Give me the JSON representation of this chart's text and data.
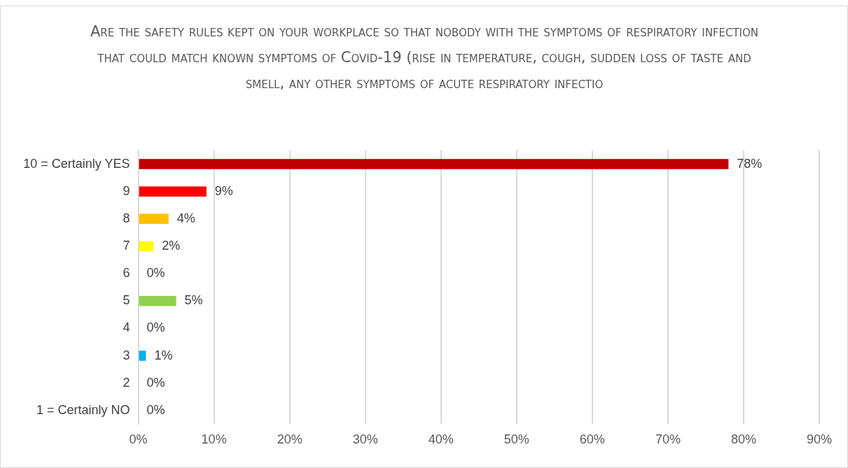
{
  "chart_data": {
    "type": "bar",
    "orientation": "horizontal",
    "title": "Are the safety rules kept on your workplace so that nobody with the symptoms of respiratory infection that could match known symptoms of Covid-19 (rise in temperature, cough, sudden loss of taste and smell, any other symptoms of acute respiratory infectio",
    "categories": [
      "10 = Certainly YES",
      "9",
      "8",
      "7",
      "6",
      "5",
      "4",
      "3",
      "2",
      "1 = Certainly NO"
    ],
    "values": [
      78,
      9,
      4,
      2,
      0,
      5,
      0,
      1,
      0,
      0
    ],
    "value_labels": [
      "78%",
      "9%",
      "4%",
      "2%",
      "0%",
      "5%",
      "0%",
      "1%",
      "0%",
      "0%"
    ],
    "colors": [
      "#c00000",
      "#ff0000",
      "#ffc000",
      "#ffff00",
      "#a5a5a5",
      "#92d050",
      "#a5a5a5",
      "#00b0f0",
      "#a5a5a5",
      "#a5a5a5"
    ],
    "xlim": [
      0,
      90
    ],
    "xticks": [
      {
        "value": 0,
        "label": "0%"
      },
      {
        "value": 10,
        "label": "10%"
      },
      {
        "value": 20,
        "label": "20%"
      },
      {
        "value": 30,
        "label": "30%"
      },
      {
        "value": 40,
        "label": "40%"
      },
      {
        "value": 50,
        "label": "50%"
      },
      {
        "value": 60,
        "label": "60%"
      },
      {
        "value": 70,
        "label": "70%"
      },
      {
        "value": 80,
        "label": "80%"
      },
      {
        "value": 90,
        "label": "90%"
      }
    ],
    "grid": "x",
    "legend": false
  }
}
